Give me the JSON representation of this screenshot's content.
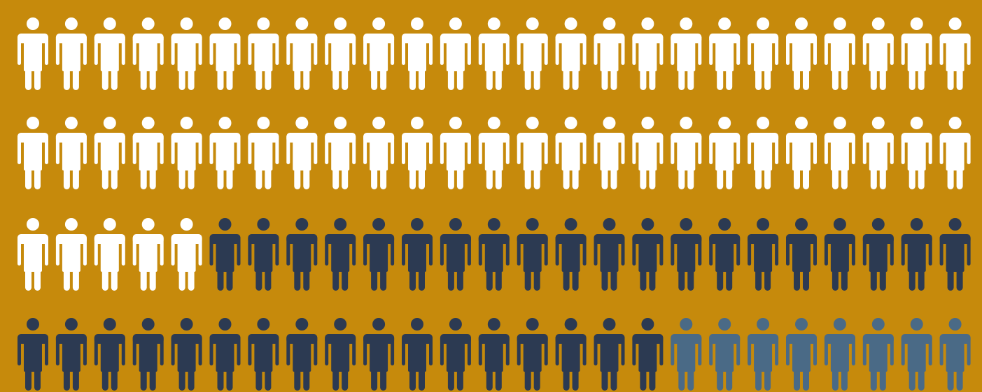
{
  "chart_data": {
    "type": "pictogram",
    "title": "",
    "total_icons": 100,
    "rows": 4,
    "icons_per_row": 25,
    "icon": "person-icon",
    "series": [
      {
        "name": "",
        "count": 55,
        "color": "#ffffff"
      },
      {
        "name": "",
        "count": 37,
        "color": "#2c3a52"
      },
      {
        "name": "",
        "count": 8,
        "color": "#4a6a86"
      }
    ]
  },
  "colors": {
    "background": "#c68a0c"
  }
}
